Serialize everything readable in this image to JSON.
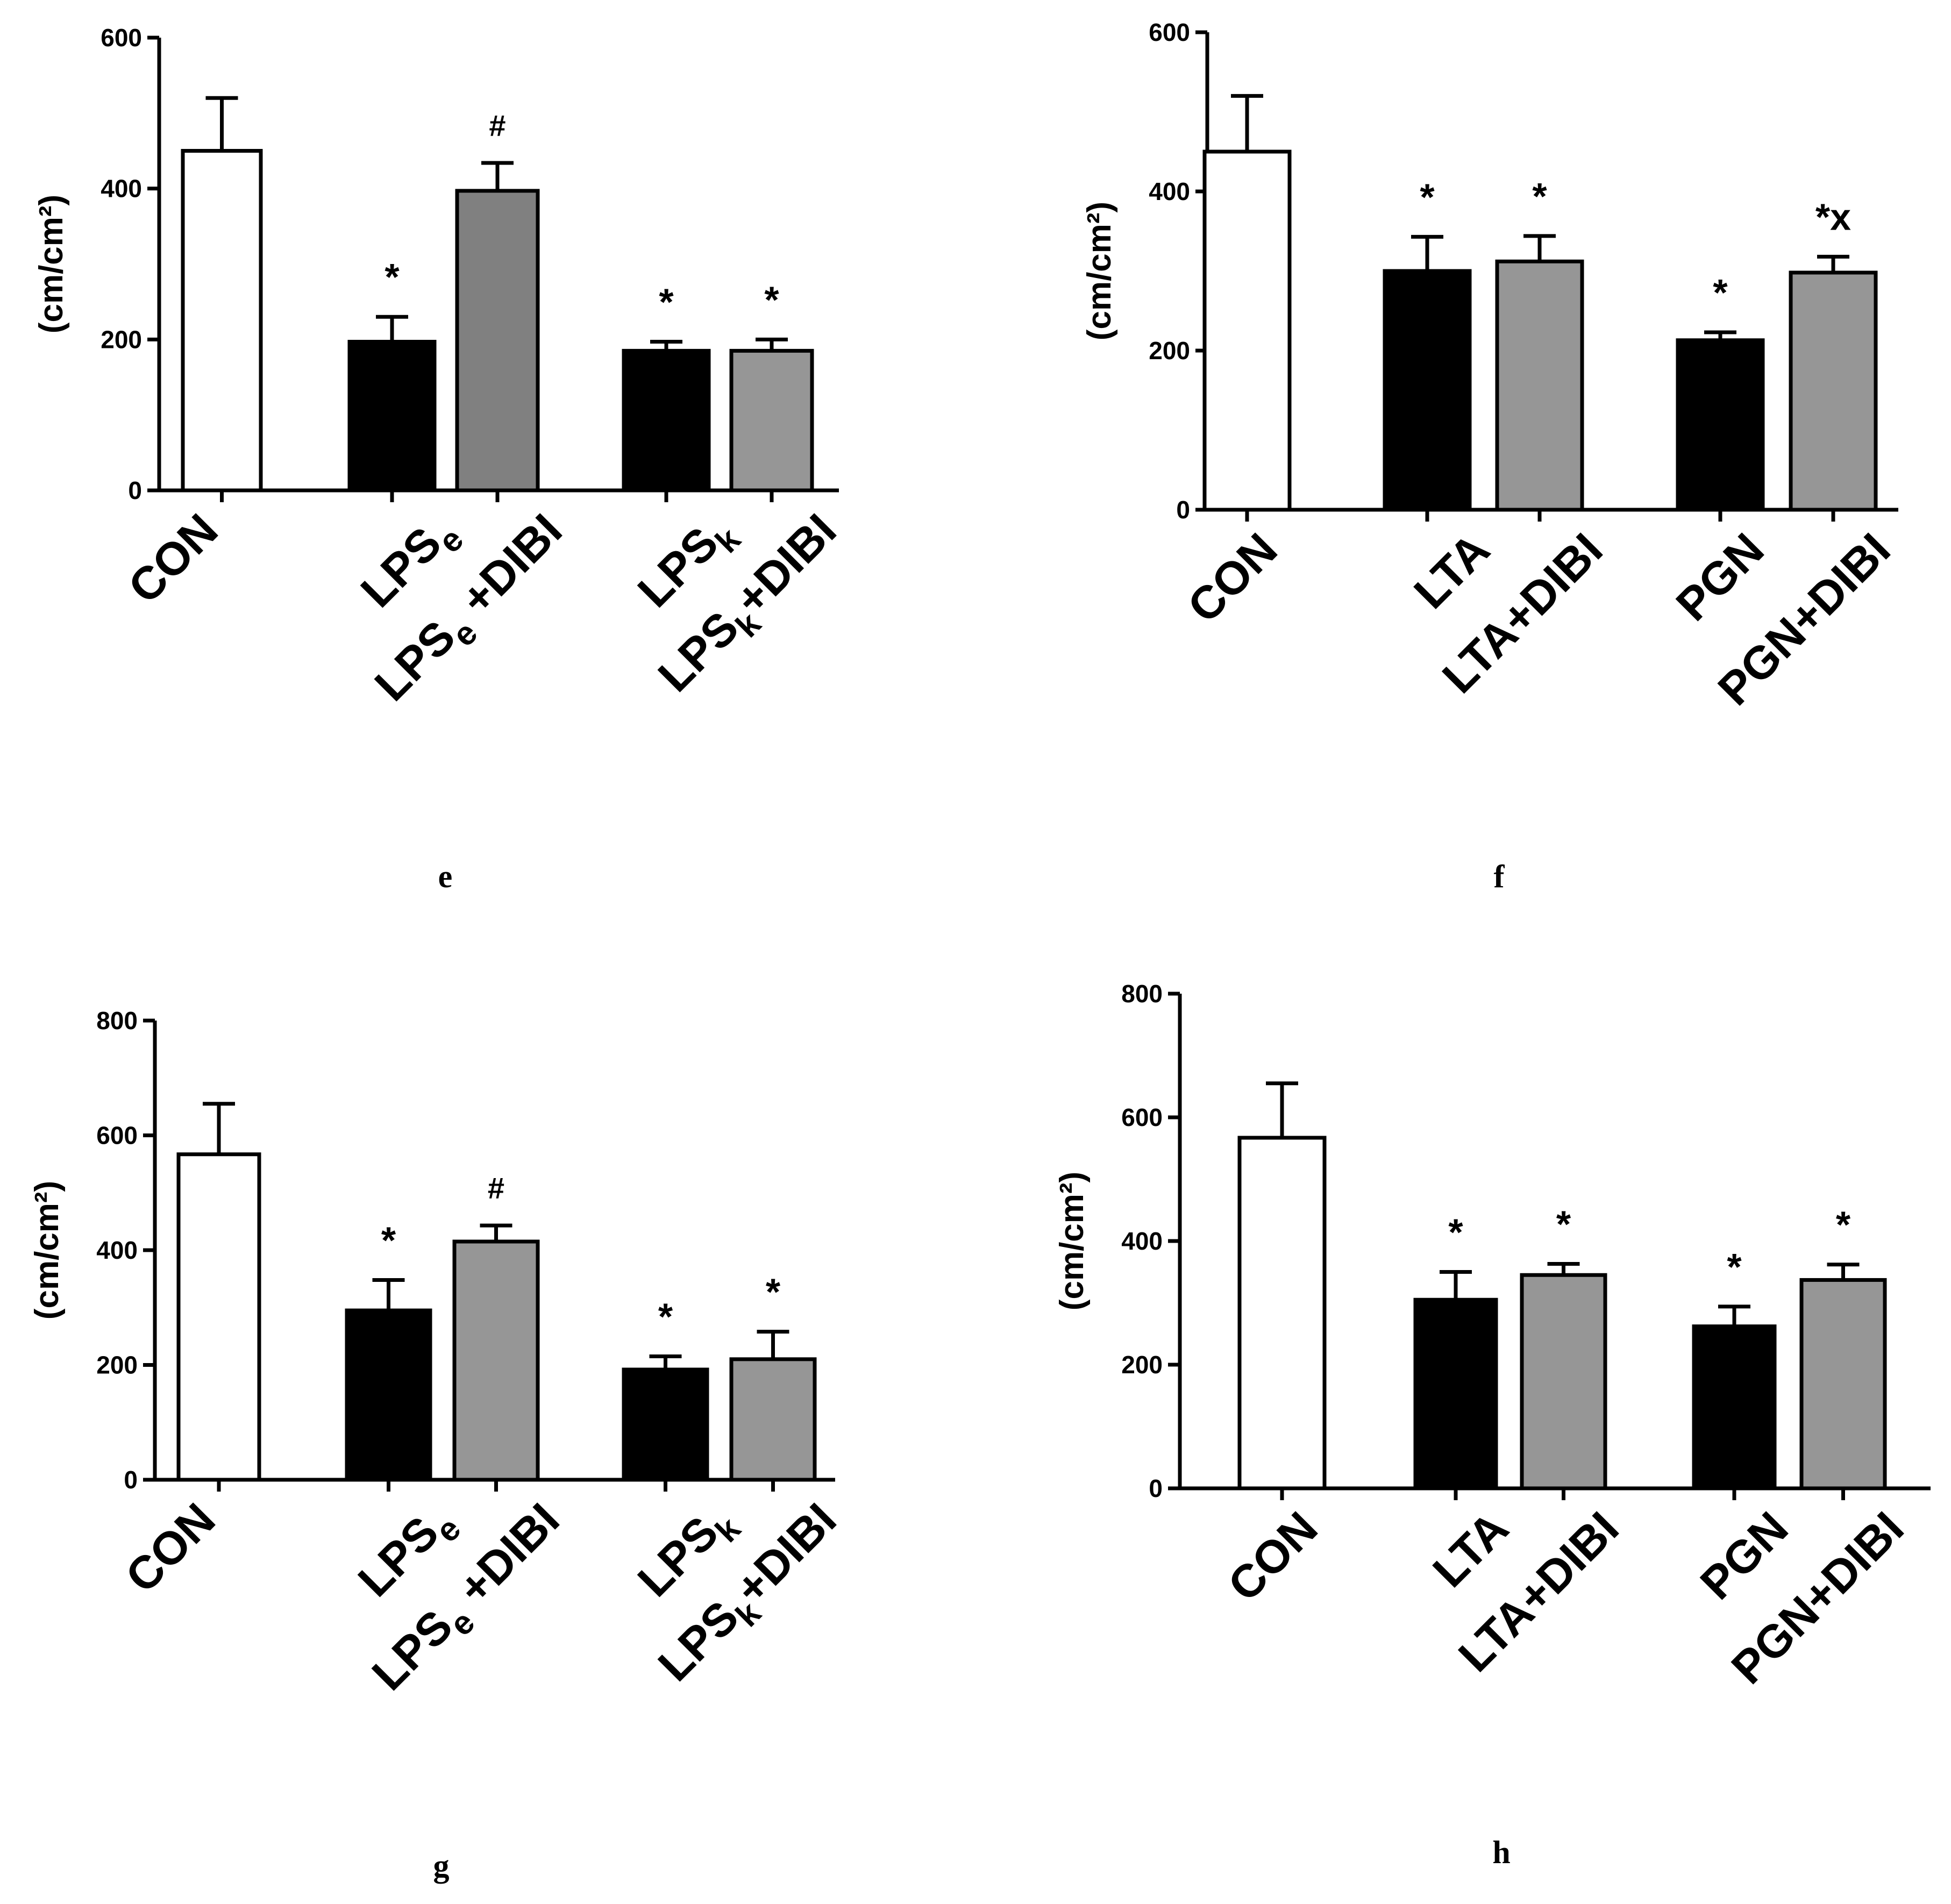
{
  "colors": {
    "axis": "#000000",
    "control_fill": "#ffffff",
    "treatment_fill": "#000000",
    "dibi_fill_dark": "#808080",
    "dibi_fill": "#969696",
    "text": "#000000"
  },
  "chart_data": [
    {
      "panel": "e",
      "type": "bar",
      "ylabel": "(cm/cm²)",
      "ylim": [
        0,
        600
      ],
      "yticks": [
        0,
        200,
        400,
        600
      ],
      "categories": [
        {
          "parts": [
            {
              "t": "CON"
            }
          ]
        },
        {
          "parts": [
            {
              "t": "LPS"
            },
            {
              "t": "e",
              "sub": true
            }
          ]
        },
        {
          "parts": [
            {
              "t": "LPS"
            },
            {
              "t": "e",
              "sub": true
            },
            {
              "t": " +DIBI"
            }
          ]
        },
        {
          "parts": [
            {
              "t": "LPS"
            },
            {
              "t": "k",
              "sub": true
            }
          ]
        },
        {
          "parts": [
            {
              "t": "LPS"
            },
            {
              "t": "k",
              "sub": true
            },
            {
              "t": "+DIBI"
            }
          ]
        }
      ],
      "values": [
        450,
        197,
        397,
        185,
        185
      ],
      "errors": [
        70,
        33,
        37,
        12,
        15
      ],
      "fills": [
        "#ffffff",
        "#000000",
        "#808080",
        "#000000",
        "#969696"
      ],
      "annotations": [
        "",
        "*",
        "#",
        "*",
        "*"
      ],
      "grid": false
    },
    {
      "panel": "f",
      "type": "bar",
      "ylabel": "(cm/cm²)",
      "ylim": [
        0,
        600
      ],
      "yticks": [
        0,
        200,
        400,
        600
      ],
      "categories": [
        {
          "parts": [
            {
              "t": "CON"
            }
          ]
        },
        {
          "parts": [
            {
              "t": "LTA"
            }
          ]
        },
        {
          "parts": [
            {
              "t": "LTA+DIBI"
            }
          ]
        },
        {
          "parts": [
            {
              "t": "PGN"
            }
          ]
        },
        {
          "parts": [
            {
              "t": "PGN+DIBI"
            }
          ]
        }
      ],
      "values": [
        450,
        300,
        312,
        213,
        298
      ],
      "errors": [
        70,
        43,
        32,
        10,
        20
      ],
      "fills": [
        "#ffffff",
        "#000000",
        "#969696",
        "#000000",
        "#969696"
      ],
      "annotations": [
        "",
        "*",
        "*",
        "*",
        "*x"
      ],
      "grid": false
    },
    {
      "panel": "g",
      "type": "bar",
      "ylabel": "(cm/cm²)",
      "ylim": [
        0,
        800
      ],
      "yticks": [
        0,
        200,
        400,
        600,
        800
      ],
      "categories": [
        {
          "parts": [
            {
              "t": "CON"
            }
          ]
        },
        {
          "parts": [
            {
              "t": "LPS"
            },
            {
              "t": "e",
              "sub": true
            }
          ]
        },
        {
          "parts": [
            {
              "t": "LPS"
            },
            {
              "t": "e",
              "sub": true
            },
            {
              "t": " +DIBI"
            }
          ]
        },
        {
          "parts": [
            {
              "t": "LPS"
            },
            {
              "t": "k",
              "sub": true
            }
          ]
        },
        {
          "parts": [
            {
              "t": "LPS"
            },
            {
              "t": "k",
              "sub": true
            },
            {
              "t": "+DIBI"
            }
          ]
        }
      ],
      "values": [
        567,
        295,
        415,
        192,
        210
      ],
      "errors": [
        88,
        53,
        28,
        23,
        48
      ],
      "fills": [
        "#ffffff",
        "#000000",
        "#969696",
        "#000000",
        "#969696"
      ],
      "annotations": [
        "",
        "*",
        "#",
        "*",
        "*"
      ],
      "grid": false
    },
    {
      "panel": "h",
      "type": "bar",
      "ylabel": "(cm/cm²)",
      "ylim": [
        0,
        800
      ],
      "yticks": [
        0,
        200,
        400,
        600,
        800
      ],
      "categories": [
        {
          "parts": [
            {
              "t": "CON"
            }
          ]
        },
        {
          "parts": [
            {
              "t": "LTA"
            }
          ]
        },
        {
          "parts": [
            {
              "t": "LTA+DIBI"
            }
          ]
        },
        {
          "parts": [
            {
              "t": "PGN"
            }
          ]
        },
        {
          "parts": [
            {
              "t": "PGN+DIBI"
            }
          ]
        }
      ],
      "values": [
        567,
        305,
        345,
        262,
        337
      ],
      "errors": [
        88,
        45,
        18,
        32,
        25
      ],
      "fills": [
        "#ffffff",
        "#000000",
        "#969696",
        "#000000",
        "#969696"
      ],
      "annotations": [
        "",
        "*",
        "*",
        "*",
        "*"
      ],
      "grid": false
    }
  ]
}
